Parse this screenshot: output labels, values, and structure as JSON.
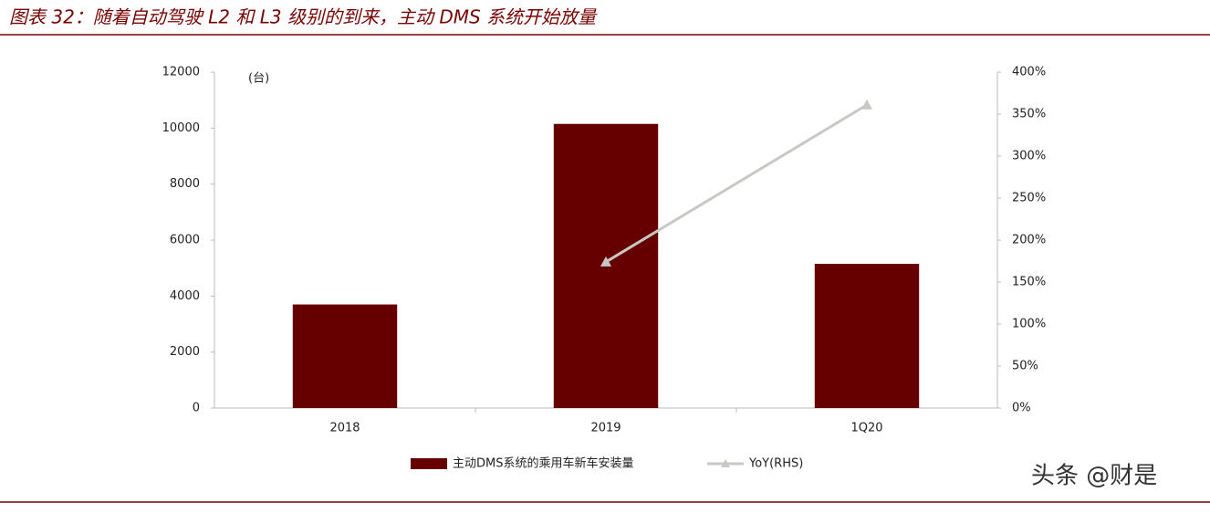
{
  "header": {
    "title": "图表 32：随着自动驾驶 L2 和 L3 级别的到来，主动 DMS 系统开始放量"
  },
  "chart_data": {
    "type": "bar",
    "unit_label": "(台)",
    "categories": [
      "2018",
      "2019",
      "1Q20"
    ],
    "series": [
      {
        "name": "主动DMS系统的乘用车新车安装量",
        "color": "#660000",
        "type": "bar",
        "values": [
          3700,
          10150,
          5150
        ]
      },
      {
        "name": "YoY(RHS)",
        "color": "#c8c8c4",
        "type": "line",
        "axis": "y2",
        "values": [
          null,
          174,
          361
        ]
      }
    ],
    "ylim": [
      0,
      12000
    ],
    "yticks": [
      0,
      2000,
      4000,
      6000,
      8000,
      10000,
      12000
    ],
    "y2lim": [
      0,
      400
    ],
    "y2ticks": [
      {
        "value": 0,
        "label": "0%"
      },
      {
        "value": 50,
        "label": "50%"
      },
      {
        "value": 100,
        "label": "100%"
      },
      {
        "value": 150,
        "label": "150%"
      },
      {
        "value": 200,
        "label": "200%"
      },
      {
        "value": 250,
        "label": "250%"
      },
      {
        "value": 300,
        "label": "300%"
      },
      {
        "value": 350,
        "label": "350%"
      },
      {
        "value": 400,
        "label": "400%"
      }
    ],
    "grid": false,
    "legend": "bottom"
  },
  "watermark": "头条 @财是"
}
